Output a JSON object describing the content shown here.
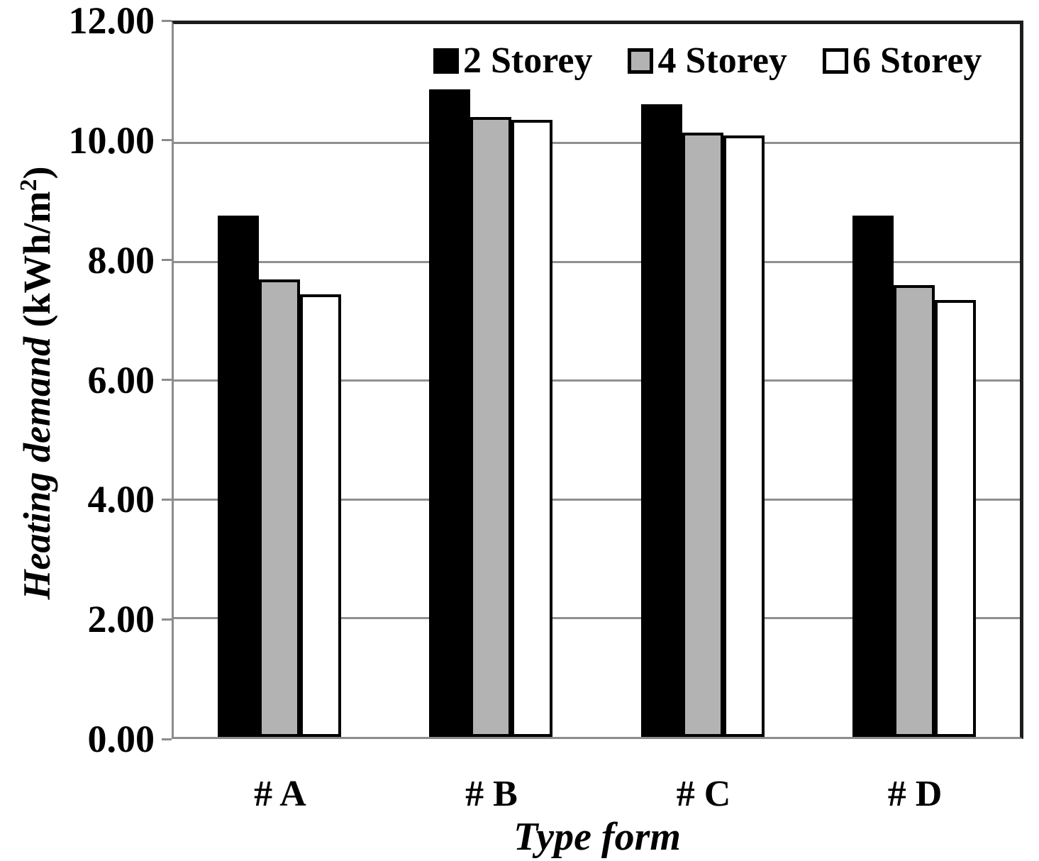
{
  "chart_data": {
    "type": "bar",
    "categories": [
      "# A",
      "# B",
      "# C",
      "# D"
    ],
    "series": [
      {
        "name": "2 Storey",
        "values": [
          8.78,
          10.9,
          10.65,
          8.78
        ],
        "fill": "#000000",
        "border": "#000000"
      },
      {
        "name": "4 Storey",
        "values": [
          7.7,
          10.44,
          10.17,
          7.61
        ],
        "fill": "#b3b3b3",
        "border": "#000000"
      },
      {
        "name": "6 Storey",
        "values": [
          7.45,
          10.39,
          10.13,
          7.36
        ],
        "fill": "#ffffff",
        "border": "#000000"
      }
    ],
    "title": "",
    "xlabel": "Type form",
    "ylabel": "Heating demand (kWh/m²)",
    "ylim": [
      0,
      12
    ],
    "ytick_step": 2,
    "ytick_labels": [
      "0.00",
      "2.00",
      "4.00",
      "6.00",
      "8.00",
      "10.00",
      "12.00"
    ],
    "grid": true,
    "legend_position": "top-inside"
  },
  "axes": {
    "xlabel": "Type form",
    "ylabel_main": "Heating demand",
    "ylabel_unit_prefix": " (kWh/m",
    "ylabel_unit_sup": "2",
    "ylabel_unit_suffix": ")"
  },
  "colors": {
    "background": "#ffffff",
    "gridline": "#8f8f8f",
    "axis_gray": "#8c8c8c",
    "frame_black": "#1c1c1c",
    "bar_black": "#000000",
    "bar_gray": "#b3b3b3",
    "bar_white": "#ffffff"
  }
}
